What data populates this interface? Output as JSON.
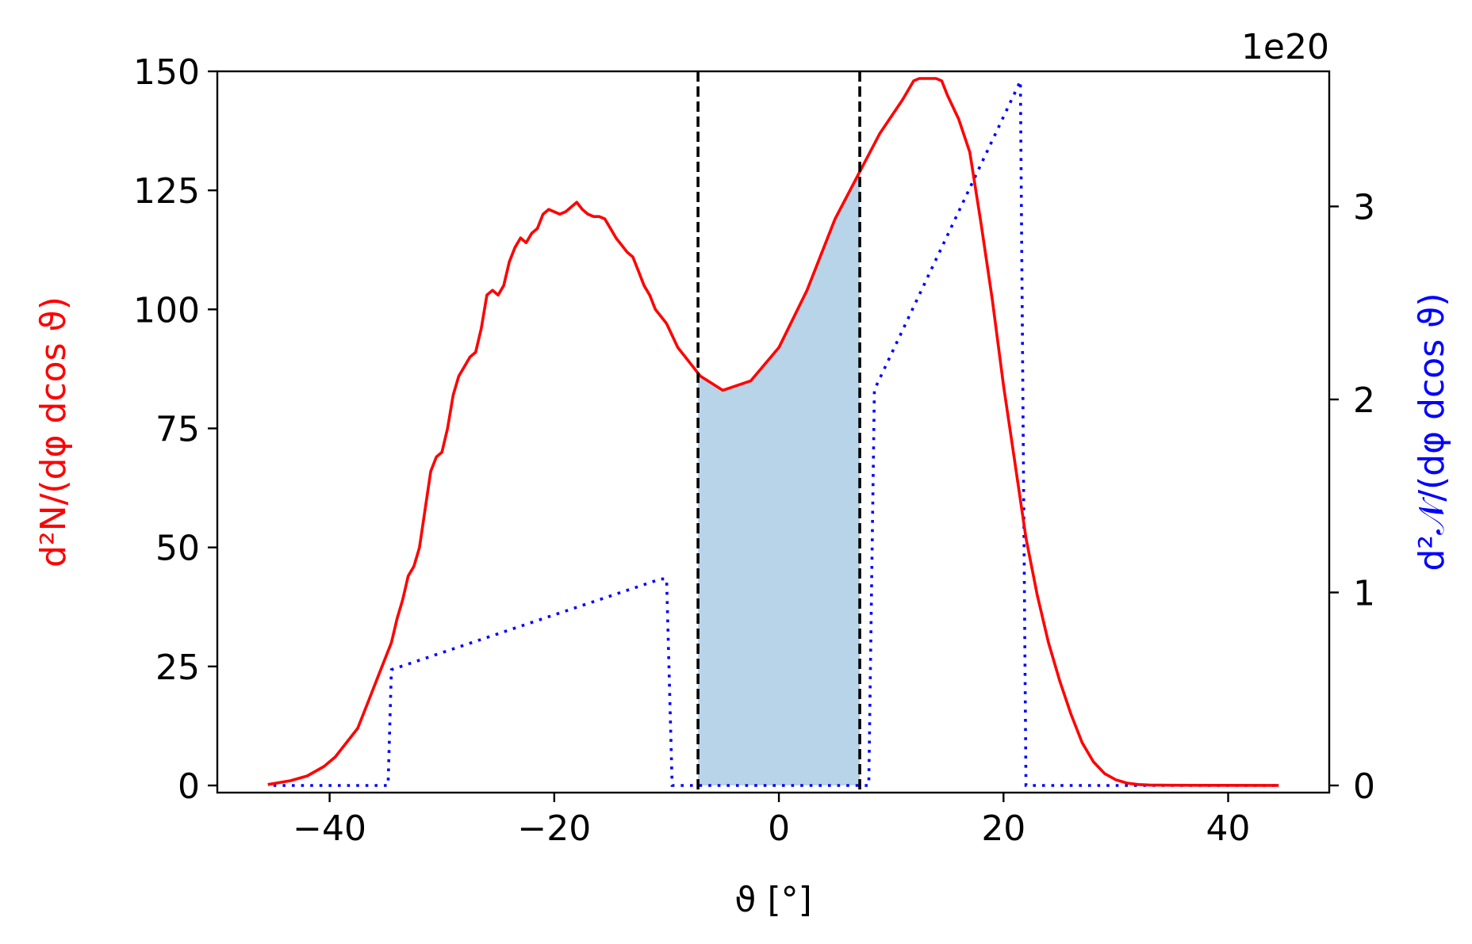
{
  "chart_data": {
    "type": "line",
    "xlabel": "ϑ [°]",
    "ylabel_left": "d²N/(dφ dcos ϑ)",
    "ylabel_right": "d²𝒩/(dφ dcos ϑ)",
    "xlim": [
      -50,
      49
    ],
    "ylim_left": [
      -1.5,
      150
    ],
    "ylim_right": [
      -0.037,
      3.7
    ],
    "right_multiplier": "1e20",
    "x_ticks": [
      -40,
      -20,
      0,
      20,
      40
    ],
    "x_tick_labels": [
      "−40",
      "−20",
      "0",
      "20",
      "40"
    ],
    "y_left_ticks": [
      0,
      25,
      50,
      75,
      100,
      125,
      150
    ],
    "y_left_tick_labels": [
      "0",
      "25",
      "50",
      "75",
      "100",
      "125",
      "150"
    ],
    "y_right_ticks": [
      0,
      1,
      2,
      3
    ],
    "y_right_tick_labels": [
      "0",
      "1",
      "2",
      "3"
    ],
    "colors": {
      "left_series": "#ff0000",
      "right_series": "#0000ff",
      "fill": "#b8d4e8",
      "vlines": "#000000"
    },
    "vlines": [
      -7.2,
      7.2
    ],
    "fill_between": [
      -7.2,
      7.2
    ],
    "series": [
      {
        "axis": "left",
        "style": "solid",
        "x": [
          -45.5,
          -43.5,
          -42,
          -40.5,
          -39.5,
          -38.5,
          -37.5,
          -36.5,
          -35.5,
          -34.5,
          -34,
          -33.5,
          -33,
          -32.5,
          -32,
          -31.5,
          -31,
          -30.5,
          -30,
          -29.5,
          -29,
          -28.5,
          -28,
          -27.5,
          -27,
          -26.5,
          -26,
          -25.5,
          -25,
          -24.5,
          -24,
          -23.5,
          -23,
          -22.5,
          -22,
          -21.5,
          -21,
          -20.5,
          -20,
          -19.5,
          -19,
          -18.5,
          -18,
          -17.5,
          -17,
          -16.5,
          -16,
          -15.5,
          -15,
          -14.5,
          -14,
          -13.5,
          -13,
          -12.5,
          -12,
          -11.5,
          -11,
          -10,
          -9,
          -8,
          -7,
          -5,
          -2.5,
          0,
          2.5,
          5,
          7,
          9,
          11,
          12,
          12.5,
          13,
          14,
          14.5,
          15,
          16,
          17,
          18,
          19,
          20,
          21,
          22,
          23,
          24,
          25,
          26,
          27,
          28,
          29,
          30,
          31,
          32,
          33,
          35,
          38,
          44.5
        ],
        "y": [
          0.2,
          1,
          2,
          4,
          6,
          9,
          12,
          18,
          24,
          30,
          35,
          39,
          44,
          46,
          50,
          58,
          66,
          69,
          70,
          75,
          82,
          86,
          88,
          90,
          91,
          96,
          103,
          104,
          103,
          105,
          110,
          113,
          115,
          114,
          116,
          117,
          120,
          121,
          120.5,
          120,
          120.5,
          121.5,
          122.5,
          121,
          120,
          119.5,
          119.5,
          119,
          117,
          115,
          113.5,
          112,
          111,
          108,
          105,
          103,
          100,
          97,
          92,
          89,
          86,
          83,
          85,
          92,
          104,
          119,
          128,
          137,
          144,
          148,
          148.5,
          148.5,
          148.5,
          148,
          145,
          140,
          133,
          118,
          102,
          84,
          68,
          52,
          40,
          30,
          22,
          15,
          9,
          5,
          2.5,
          1.2,
          0.5,
          0.2,
          0.1,
          0.05,
          0.03,
          0.02
        ]
      },
      {
        "axis": "right",
        "style": "dotted",
        "x": [
          -45,
          -34.8,
          -34.5,
          -10.5,
          -10,
          -9.5,
          8,
          8.5,
          21.5,
          22,
          44.5
        ],
        "y": [
          0,
          0,
          0.6,
          1.07,
          1.07,
          0,
          0,
          2.05,
          3.65,
          0,
          0
        ]
      }
    ]
  }
}
